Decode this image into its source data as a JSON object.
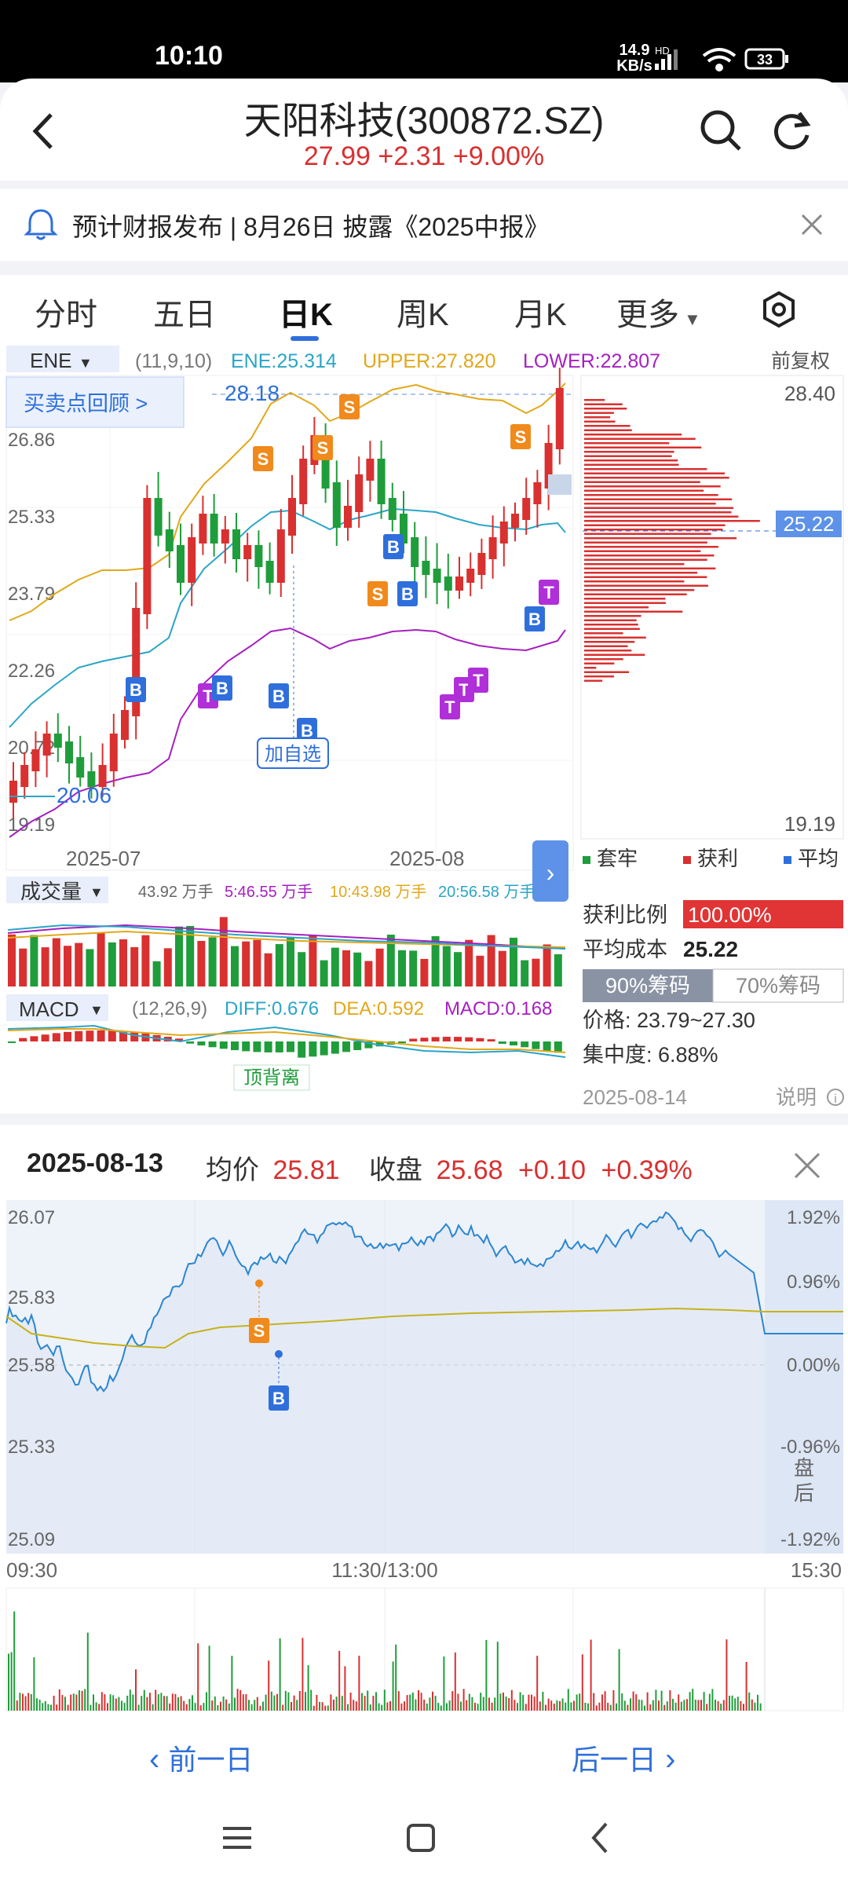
{
  "status_bar": {
    "time": "10:10",
    "net_speed": "14.9",
    "net_unit": "KB/s",
    "hd": "HD",
    "battery": "33"
  },
  "header": {
    "title": "天阳科技(300872.SZ)",
    "price": "27.99",
    "change": "+2.31",
    "change_pct": "+9.00%"
  },
  "notice": {
    "text": "预计财报发布 | 8月26日 披露《2025中报》"
  },
  "tabs": [
    "分时",
    "五日",
    "日K",
    "周K",
    "月K",
    "更多"
  ],
  "tabs_active": "日K",
  "kline": {
    "indicator_name": "ENE",
    "params": "(11,9,10)",
    "ene": "ENE:25.314",
    "upper": "UPPER:27.820",
    "lower": "LOWER:22.807",
    "adjust": "前复权",
    "review_btn": "买卖点回顾 >",
    "high_label": "28.18",
    "low_label": "20.06",
    "add_watch": "加自选",
    "y_ticks": [
      "26.86",
      "25.33",
      "23.79",
      "22.26",
      "20.72",
      "19.19"
    ],
    "x_ticks": [
      "2025-07",
      "2025-08"
    ],
    "markers": [
      "S",
      "B",
      "T"
    ]
  },
  "chip": {
    "top": "28.40",
    "mid": "25.22",
    "bottom": "19.19",
    "legend": [
      "套牢",
      "获利",
      "平均"
    ],
    "profit_label": "获利比例",
    "profit_value": "100.00%",
    "avg_label": "平均成本",
    "avg_value": "25.22",
    "tab90": "90%筹码",
    "tab70": "70%筹码",
    "price_range": "价格: 23.79~27.30",
    "concentration": "集中度: 6.88%",
    "date": "2025-08-14",
    "explain": "说明"
  },
  "volume": {
    "label": "成交量",
    "total": "43.92 万手",
    "ma5": "5:46.55 万手",
    "ma10": "10:43.98 万手",
    "ma20": "20:56.58 万手"
  },
  "macd": {
    "label": "MACD",
    "params": "(12,26,9)",
    "diff": "DIFF:0.676",
    "dea": "DEA:0.592",
    "macd": "MACD:0.168",
    "note": "顶背离"
  },
  "intraday": {
    "date": "2025-08-13",
    "avg_label": "均价",
    "avg_value": "25.81",
    "close_label": "收盘",
    "close_value": "25.68",
    "change": "+0.10",
    "change_pct": "+0.39%",
    "y_left": [
      "26.07",
      "25.83",
      "25.58",
      "25.33",
      "25.09"
    ],
    "y_right": [
      "1.92%",
      "0.96%",
      "0.00%",
      "-0.96%",
      "-1.92%"
    ],
    "after_hours": "盘后",
    "x_ticks": [
      "09:30",
      "11:30/13:00",
      "15:30"
    ]
  },
  "nav": {
    "prev": "前一日",
    "next": "后一日"
  },
  "colors": {
    "up": "#d93030",
    "down": "#1f9d3b",
    "blue": "#2f6fdb",
    "orange": "#f08a1c",
    "purple": "#b02fd8",
    "ene_yellow": "#e1a81a",
    "ene_teal": "#2aa5c6",
    "ene_purple": "#a620c0"
  }
}
